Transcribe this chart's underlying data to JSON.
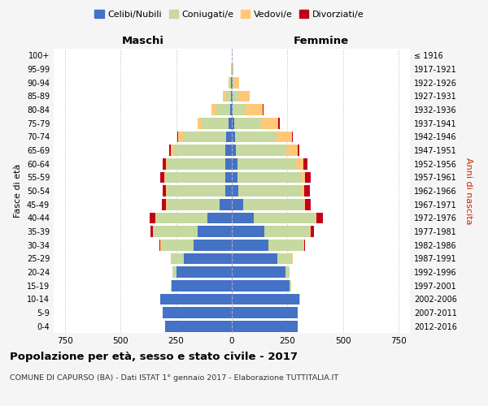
{
  "age_groups": [
    "0-4",
    "5-9",
    "10-14",
    "15-19",
    "20-24",
    "25-29",
    "30-34",
    "35-39",
    "40-44",
    "45-49",
    "50-54",
    "55-59",
    "60-64",
    "65-69",
    "70-74",
    "75-79",
    "80-84",
    "85-89",
    "90-94",
    "95-99",
    "100+"
  ],
  "birth_years": [
    "2012-2016",
    "2007-2011",
    "2002-2006",
    "1997-2001",
    "1992-1996",
    "1987-1991",
    "1982-1986",
    "1977-1981",
    "1972-1976",
    "1967-1971",
    "1962-1966",
    "1957-1961",
    "1952-1956",
    "1947-1951",
    "1942-1946",
    "1937-1941",
    "1932-1936",
    "1927-1931",
    "1922-1926",
    "1917-1921",
    "≤ 1916"
  ],
  "maschi": {
    "celibi": [
      300,
      310,
      320,
      270,
      250,
      215,
      170,
      155,
      110,
      55,
      30,
      30,
      30,
      30,
      25,
      15,
      8,
      4,
      2,
      1,
      0
    ],
    "coniugati": [
      0,
      0,
      2,
      5,
      15,
      55,
      145,
      195,
      230,
      235,
      260,
      270,
      260,
      230,
      195,
      120,
      60,
      20,
      8,
      2,
      0
    ],
    "vedovi": [
      0,
      0,
      0,
      0,
      0,
      5,
      5,
      5,
      5,
      5,
      5,
      5,
      5,
      15,
      20,
      20,
      25,
      15,
      5,
      1,
      0
    ],
    "divorziati": [
      0,
      0,
      0,
      0,
      0,
      0,
      5,
      10,
      25,
      20,
      15,
      15,
      15,
      5,
      5,
      0,
      0,
      0,
      0,
      0,
      0
    ]
  },
  "femmine": {
    "nubili": [
      295,
      295,
      305,
      260,
      240,
      205,
      165,
      145,
      100,
      50,
      30,
      25,
      25,
      20,
      15,
      10,
      5,
      5,
      2,
      1,
      0
    ],
    "coniugate": [
      0,
      0,
      2,
      5,
      20,
      65,
      155,
      205,
      275,
      270,
      285,
      285,
      265,
      225,
      185,
      120,
      55,
      25,
      10,
      2,
      0
    ],
    "vedove": [
      0,
      0,
      0,
      0,
      0,
      5,
      5,
      5,
      5,
      8,
      10,
      20,
      30,
      50,
      70,
      80,
      80,
      50,
      20,
      3,
      0
    ],
    "divorziate": [
      0,
      0,
      0,
      0,
      0,
      0,
      5,
      15,
      30,
      25,
      25,
      25,
      20,
      10,
      5,
      5,
      2,
      0,
      0,
      0,
      0
    ]
  },
  "colors": {
    "celibi": "#4472c4",
    "coniugati": "#c5d9a0",
    "vedovi": "#ffc878",
    "divorziati": "#c0001a"
  },
  "xlim": 800,
  "title": "Popolazione per età, sesso e stato civile - 2017",
  "subtitle": "COMUNE DI CAPURSO (BA) - Dati ISTAT 1° gennaio 2017 - Elaborazione TUTTITALIA.IT",
  "ylabel_left": "Fasce di età",
  "ylabel_right": "Anni di nascita",
  "label_maschi": "Maschi",
  "label_femmine": "Femmine",
  "legend_labels": [
    "Celibi/Nubili",
    "Coniugati/e",
    "Vedovi/e",
    "Divorziati/e"
  ],
  "bg_color": "#f5f5f5",
  "plot_bg": "#ffffff"
}
